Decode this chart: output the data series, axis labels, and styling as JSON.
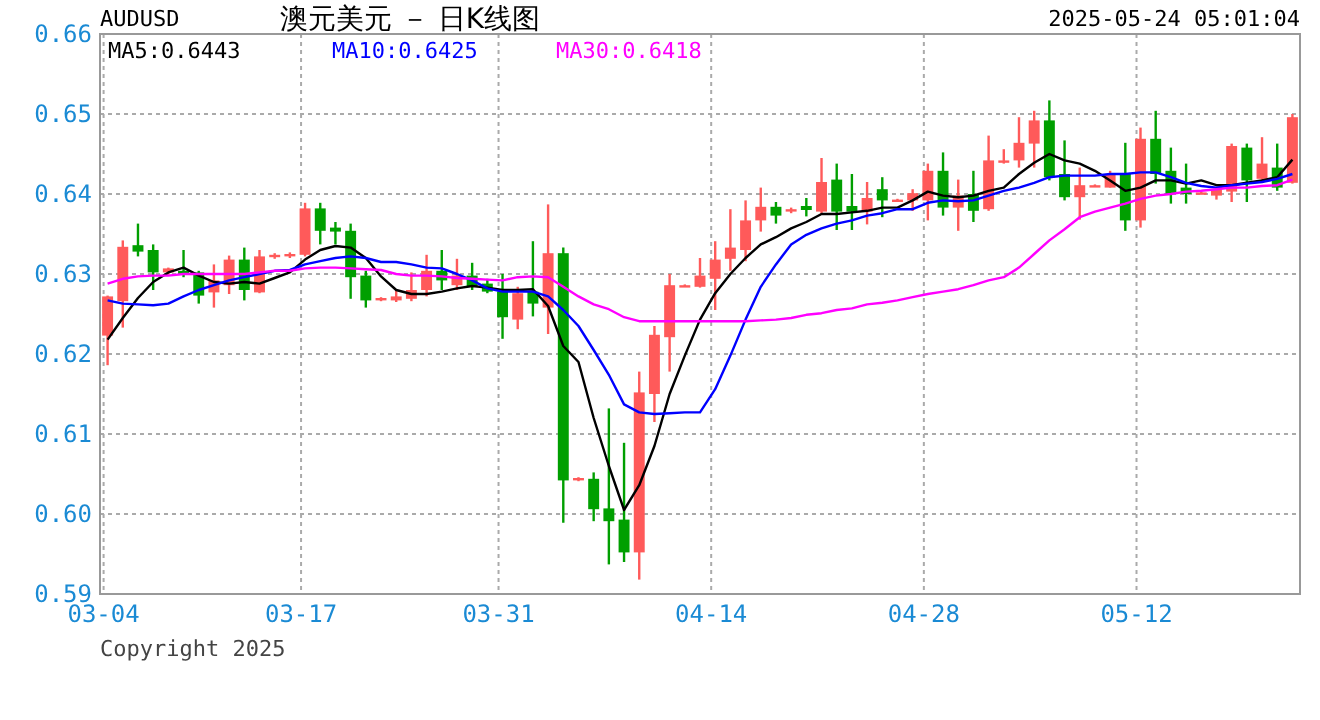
{
  "chart_data": {
    "type": "candlestick",
    "title": "澳元美元 － 日K线图",
    "subtitle": "AUDUSD",
    "annotations": [
      "2025-05-24 05:01:04",
      "Copyright 2025"
    ],
    "categories": [
      "03-04",
      null,
      null,
      null,
      null,
      null,
      null,
      null,
      null,
      null,
      null,
      null,
      null,
      "03-17",
      null,
      null,
      null,
      null,
      null,
      null,
      null,
      null,
      null,
      null,
      null,
      null,
      "03-31",
      null,
      null,
      null,
      null,
      null,
      null,
      null,
      null,
      null,
      null,
      null,
      null,
      null,
      "04-14",
      null,
      null,
      null,
      null,
      null,
      null,
      null,
      null,
      null,
      null,
      null,
      null,
      null,
      "04-28",
      null,
      null,
      null,
      null,
      null,
      null,
      null,
      null,
      null,
      null,
      null,
      null,
      null,
      "05-12",
      null,
      null,
      null,
      null,
      null,
      null,
      null,
      null,
      null,
      null
    ],
    "ohlc": [
      [
        0.6223,
        0.6273,
        0.6186,
        0.6272
      ],
      [
        0.6266,
        0.6342,
        0.6233,
        0.6334
      ],
      [
        0.6336,
        0.6363,
        0.6322,
        0.6328
      ],
      [
        0.633,
        0.6337,
        0.628,
        0.6302
      ],
      [
        0.6302,
        0.6308,
        0.6299,
        0.6307
      ],
      [
        0.6304,
        0.633,
        0.6296,
        0.6299
      ],
      [
        0.6302,
        0.6304,
        0.6263,
        0.6273
      ],
      [
        0.6277,
        0.6312,
        0.6258,
        0.6292
      ],
      [
        0.6286,
        0.6323,
        0.6275,
        0.6318
      ],
      [
        0.6318,
        0.6333,
        0.6267,
        0.628
      ],
      [
        0.6277,
        0.633,
        0.6276,
        0.6322
      ],
      [
        0.6321,
        0.6326,
        0.6319,
        0.6324
      ],
      [
        0.6322,
        0.6327,
        0.632,
        0.6325
      ],
      [
        0.6324,
        0.6389,
        0.6322,
        0.6382
      ],
      [
        0.6382,
        0.6389,
        0.6337,
        0.6354
      ],
      [
        0.6358,
        0.6365,
        0.6337,
        0.6353
      ],
      [
        0.6354,
        0.6363,
        0.6269,
        0.6296
      ],
      [
        0.6298,
        0.6304,
        0.6258,
        0.6267
      ],
      [
        0.6267,
        0.6271,
        0.6266,
        0.627
      ],
      [
        0.6267,
        0.6281,
        0.6265,
        0.6272
      ],
      [
        0.6269,
        0.6302,
        0.6266,
        0.628
      ],
      [
        0.628,
        0.6324,
        0.6272,
        0.6304
      ],
      [
        0.6304,
        0.633,
        0.628,
        0.6292
      ],
      [
        0.6286,
        0.6319,
        0.628,
        0.6298
      ],
      [
        0.6298,
        0.6314,
        0.628,
        0.6285
      ],
      [
        0.6288,
        0.6294,
        0.6276,
        0.6278
      ],
      [
        0.6278,
        0.63,
        0.6219,
        0.6246
      ],
      [
        0.6243,
        0.6284,
        0.6231,
        0.6276
      ],
      [
        0.6278,
        0.6341,
        0.6247,
        0.6263
      ],
      [
        0.6258,
        0.6387,
        0.6225,
        0.6326
      ],
      [
        0.6326,
        0.6333,
        0.5989,
        0.6042
      ],
      [
        0.6042,
        0.6046,
        0.6041,
        0.6045
      ],
      [
        0.6044,
        0.6052,
        0.5991,
        0.6006
      ],
      [
        0.6007,
        0.6132,
        0.5937,
        0.5991
      ],
      [
        0.5993,
        0.6089,
        0.594,
        0.5952
      ],
      [
        0.5952,
        0.6178,
        0.5918,
        0.6152
      ],
      [
        0.615,
        0.6235,
        0.6115,
        0.6224
      ],
      [
        0.6221,
        0.63,
        0.6178,
        0.6286
      ],
      [
        0.6285,
        0.6287,
        0.6284,
        0.6286
      ],
      [
        0.6284,
        0.632,
        0.6283,
        0.6298
      ],
      [
        0.6294,
        0.6341,
        0.6255,
        0.6318
      ],
      [
        0.6319,
        0.6381,
        0.6304,
        0.6333
      ],
      [
        0.633,
        0.6392,
        0.6316,
        0.6367
      ],
      [
        0.6367,
        0.6408,
        0.6353,
        0.6384
      ],
      [
        0.6384,
        0.639,
        0.6363,
        0.6373
      ],
      [
        0.6378,
        0.6383,
        0.6376,
        0.6381
      ],
      [
        0.6385,
        0.6395,
        0.6372,
        0.638
      ],
      [
        0.6378,
        0.6445,
        0.6375,
        0.6415
      ],
      [
        0.6418,
        0.6438,
        0.6355,
        0.6378
      ],
      [
        0.6385,
        0.6425,
        0.6355,
        0.6378
      ],
      [
        0.6378,
        0.6415,
        0.6362,
        0.6395
      ],
      [
        0.6406,
        0.6421,
        0.6371,
        0.6392
      ],
      [
        0.6392,
        0.6394,
        0.6391,
        0.6393
      ],
      [
        0.6392,
        0.6406,
        0.6379,
        0.6401
      ],
      [
        0.6392,
        0.6438,
        0.6367,
        0.6429
      ],
      [
        0.6429,
        0.6452,
        0.6373,
        0.6383
      ],
      [
        0.6383,
        0.6418,
        0.6354,
        0.6398
      ],
      [
        0.64,
        0.6429,
        0.6365,
        0.6379
      ],
      [
        0.6381,
        0.6473,
        0.6379,
        0.6442
      ],
      [
        0.6441,
        0.6456,
        0.6438,
        0.6442
      ],
      [
        0.6442,
        0.6496,
        0.6433,
        0.6464
      ],
      [
        0.6463,
        0.6504,
        0.6433,
        0.6492
      ],
      [
        0.6492,
        0.6517,
        0.6417,
        0.6421
      ],
      [
        0.6425,
        0.6467,
        0.6392,
        0.6396
      ],
      [
        0.6396,
        0.6433,
        0.6368,
        0.6411
      ],
      [
        0.641,
        0.6412,
        0.6409,
        0.6411
      ],
      [
        0.6408,
        0.6429,
        0.6408,
        0.6425
      ],
      [
        0.6425,
        0.6464,
        0.6354,
        0.6367
      ],
      [
        0.6367,
        0.6483,
        0.6358,
        0.6469
      ],
      [
        0.6469,
        0.6504,
        0.6413,
        0.6425
      ],
      [
        0.6429,
        0.6458,
        0.6388,
        0.64
      ],
      [
        0.6408,
        0.6438,
        0.6388,
        0.64
      ],
      [
        0.6401,
        0.6403,
        0.64,
        0.6402
      ],
      [
        0.6398,
        0.6408,
        0.6393,
        0.6406
      ],
      [
        0.6403,
        0.6463,
        0.639,
        0.646
      ],
      [
        0.6458,
        0.6463,
        0.639,
        0.6417
      ],
      [
        0.6419,
        0.6471,
        0.6417,
        0.6438
      ],
      [
        0.6433,
        0.6463,
        0.6404,
        0.6408
      ],
      [
        0.6414,
        0.65,
        0.6413,
        0.6496
      ]
    ],
    "series": [
      {
        "type": "line",
        "name": "MA5:0.6443",
        "color": "#000000",
        "values": [
          0.6218,
          0.6245,
          0.627,
          0.629,
          0.6302,
          0.6308,
          0.6298,
          0.629,
          0.6288,
          0.629,
          0.6288,
          0.6295,
          0.6302,
          0.6318,
          0.633,
          0.6335,
          0.6333,
          0.632,
          0.6297,
          0.628,
          0.6275,
          0.6275,
          0.6278,
          0.6282,
          0.6285,
          0.6283,
          0.628,
          0.628,
          0.6281,
          0.626,
          0.621,
          0.619,
          0.612,
          0.606,
          0.6005,
          0.6036,
          0.6085,
          0.615,
          0.6198,
          0.6243,
          0.6276,
          0.63,
          0.632,
          0.6337,
          0.6346,
          0.6357,
          0.6365,
          0.6375,
          0.6375,
          0.6377,
          0.6379,
          0.6383,
          0.6383,
          0.6392,
          0.6403,
          0.6398,
          0.6396,
          0.6398,
          0.6404,
          0.6408,
          0.6425,
          0.6439,
          0.645,
          0.6442,
          0.6438,
          0.6429,
          0.6417,
          0.6404,
          0.6408,
          0.6417,
          0.6417,
          0.6413,
          0.6417,
          0.6411,
          0.6411,
          0.6414,
          0.6417,
          0.6421,
          0.6443
        ]
      },
      {
        "type": "line",
        "name": "MA10:0.6425",
        "color": "#0000ff",
        "values": [
          0.6267,
          0.6263,
          0.6262,
          0.6261,
          0.6263,
          0.6272,
          0.628,
          0.6286,
          0.6292,
          0.6296,
          0.63,
          0.6304,
          0.6305,
          0.6312,
          0.6316,
          0.632,
          0.6322,
          0.632,
          0.6315,
          0.6315,
          0.6312,
          0.6308,
          0.6307,
          0.63,
          0.6292,
          0.6282,
          0.6278,
          0.6278,
          0.6278,
          0.6272,
          0.6255,
          0.6235,
          0.6205,
          0.6174,
          0.6137,
          0.6127,
          0.6125,
          0.6126,
          0.6127,
          0.6127,
          0.6156,
          0.6198,
          0.6243,
          0.6284,
          0.6312,
          0.6337,
          0.6349,
          0.6357,
          0.6363,
          0.6367,
          0.6373,
          0.6376,
          0.6381,
          0.6381,
          0.6389,
          0.6392,
          0.6391,
          0.6392,
          0.6398,
          0.6404,
          0.6408,
          0.6414,
          0.6421,
          0.6423,
          0.6423,
          0.6423,
          0.6425,
          0.6425,
          0.6427,
          0.6427,
          0.6421,
          0.6414,
          0.641,
          0.6408,
          0.6411,
          0.6413,
          0.6415,
          0.6419,
          0.6425
        ]
      },
      {
        "type": "line",
        "name": "MA30:0.6418",
        "color": "#ff00ff",
        "values": [
          0.6288,
          0.6294,
          0.6297,
          0.6298,
          0.6298,
          0.63,
          0.63,
          0.63,
          0.63,
          0.63,
          0.6302,
          0.6304,
          0.6304,
          0.6307,
          0.6308,
          0.6308,
          0.6307,
          0.6306,
          0.6305,
          0.63,
          0.6298,
          0.6298,
          0.6297,
          0.6295,
          0.6294,
          0.6293,
          0.6292,
          0.6296,
          0.6297,
          0.6296,
          0.6284,
          0.6272,
          0.6262,
          0.6256,
          0.6246,
          0.6241,
          0.6241,
          0.6241,
          0.6241,
          0.6241,
          0.6241,
          0.6241,
          0.6241,
          0.6242,
          0.6243,
          0.6245,
          0.6249,
          0.6251,
          0.6255,
          0.6257,
          0.6262,
          0.6264,
          0.6267,
          0.6271,
          0.6275,
          0.6278,
          0.6281,
          0.6286,
          0.6292,
          0.6296,
          0.6308,
          0.6325,
          0.6342,
          0.6356,
          0.6371,
          0.6378,
          0.6383,
          0.6388,
          0.6394,
          0.6398,
          0.64,
          0.6403,
          0.6404,
          0.6406,
          0.6408,
          0.6408,
          0.641,
          0.6411,
          0.6418
        ]
      }
    ],
    "ylim": [
      0.59,
      0.66
    ],
    "yticks": [
      0.59,
      {
        "value": 0.6,
        "label": "0.60"
      },
      0.61,
      0.62,
      0.63,
      0.64,
      0.65,
      0.66
    ],
    "grid": true,
    "legend": "top left"
  }
}
